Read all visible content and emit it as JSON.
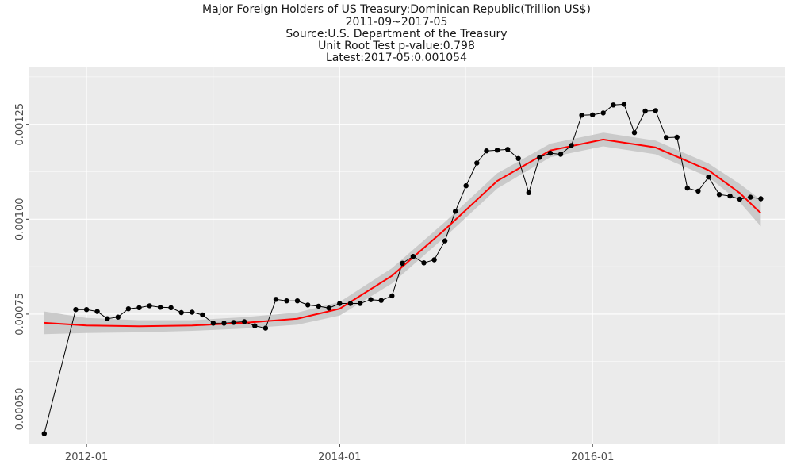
{
  "chart_data": {
    "type": "line",
    "title_lines": [
      "Major Foreign Holders of US Treasury:Dominican Republic(Trillion US$)",
      "2011-09~2017-05",
      "Source:U.S. Department of the Treasury",
      "Unit Root Test p-value:0.798",
      "Latest:2017-05:0.001054"
    ],
    "xlabel": "",
    "ylabel": "",
    "x_start": "2011-09",
    "x_end": "2017-05",
    "xlim": [
      "2011-07-20",
      "2017-07-10"
    ],
    "ylim": [
      0.000407,
      0.001402
    ],
    "x_ticks": [
      "2012-01",
      "2014-01",
      "2016-01"
    ],
    "y_ticks": [
      "0.00050",
      "0.00075",
      "0.00100",
      "0.00125"
    ],
    "series": [
      {
        "kind": "points",
        "x": [
          "2011-09",
          "2011-12",
          "2012-01",
          "2012-02",
          "2012-03",
          "2012-04",
          "2012-05",
          "2012-06",
          "2012-07",
          "2012-08",
          "2012-09",
          "2012-10",
          "2012-11",
          "2012-12",
          "2013-01",
          "2013-02",
          "2013-03",
          "2013-04",
          "2013-05",
          "2013-06",
          "2013-07",
          "2013-08",
          "2013-09",
          "2013-10",
          "2013-11",
          "2013-12",
          "2014-01",
          "2014-02",
          "2014-03",
          "2014-04",
          "2014-05",
          "2014-06",
          "2014-07",
          "2014-08",
          "2014-09",
          "2014-10",
          "2014-11",
          "2014-12",
          "2015-01",
          "2015-02",
          "2015-03",
          "2015-04",
          "2015-05",
          "2015-06",
          "2015-07",
          "2015-08",
          "2015-09",
          "2015-10",
          "2015-11",
          "2015-12",
          "2016-01",
          "2016-02",
          "2016-03",
          "2016-04",
          "2016-05",
          "2016-06",
          "2016-07",
          "2016-08",
          "2016-09",
          "2016-10",
          "2016-11",
          "2016-12",
          "2017-01",
          "2017-02",
          "2017-03",
          "2017-04",
          "2017-05"
        ],
        "values": [
          0.000435,
          0.000762,
          0.000762,
          0.000757,
          0.000738,
          0.000742,
          0.000764,
          0.000767,
          0.000772,
          0.000768,
          0.000767,
          0.000754,
          0.000755,
          0.000748,
          0.000726,
          0.000726,
          0.000728,
          0.00073,
          0.000719,
          0.000713,
          0.000789,
          0.000785,
          0.000785,
          0.000774,
          0.000771,
          0.000766,
          0.000778,
          0.000778,
          0.000778,
          0.000788,
          0.000786,
          0.000798,
          0.000884,
          0.000902,
          0.000885,
          0.000893,
          0.000943,
          0.001021,
          0.001088,
          0.001148,
          0.00118,
          0.001182,
          0.001184,
          0.00116,
          0.00107,
          0.001163,
          0.001174,
          0.001171,
          0.001194,
          0.001274,
          0.001275,
          0.00128,
          0.001301,
          0.001303,
          0.001228,
          0.001285,
          0.001286,
          0.001215,
          0.001216,
          0.001082,
          0.001074,
          0.001111,
          0.001065,
          0.001061,
          0.001053,
          0.001058,
          0.001054
        ]
      },
      {
        "kind": "smooth",
        "color": "#ff0000",
        "x": [
          "2011-09",
          "2012-01",
          "2012-06",
          "2012-11",
          "2013-04",
          "2013-09",
          "2014-01",
          "2014-06",
          "2014-11",
          "2015-04",
          "2015-09",
          "2016-02",
          "2016-07",
          "2016-12",
          "2017-03",
          "2017-05"
        ],
        "values": [
          0.000727,
          0.00072,
          0.000718,
          0.00072,
          0.000727,
          0.000738,
          0.000764,
          0.000851,
          0.000973,
          0.001101,
          0.001181,
          0.00121,
          0.001189,
          0.001129,
          0.001069,
          0.001016
        ]
      }
    ],
    "band_color": "#c8c8c8",
    "band_halfwidth": [
      3e-05,
      2e-05,
      1.6e-05,
      1.4e-05,
      1.5e-05,
      1.6e-05,
      1.8e-05,
      2e-05,
      2e-05,
      2e-05,
      1.8e-05,
      1.8e-05,
      1.8e-05,
      1.8e-05,
      2.4e-05,
      3.5e-05
    ],
    "grid": true,
    "background": "#ebebeb",
    "grid_color": "#ffffff"
  }
}
